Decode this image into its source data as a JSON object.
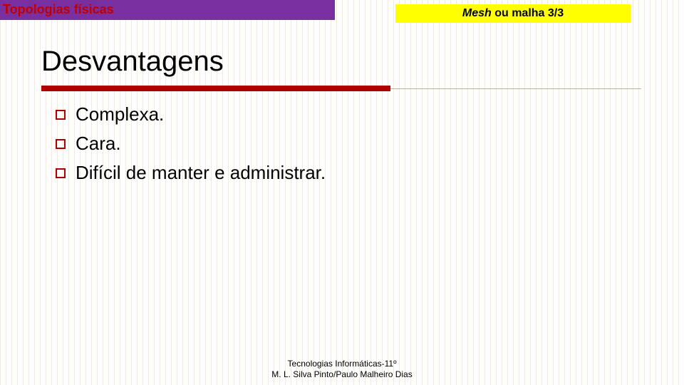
{
  "topic": "Topologias físicas",
  "subtitle_italic": "Mesh",
  "subtitle_rest": " ou malha 3/3",
  "heading": "Desvantagens",
  "bullets": [
    "Complexa.",
    "Cara.",
    "Difícil de manter e administrar."
  ],
  "footer_line1": "Tecnologias Informáticas-11º",
  "footer_line2": "M. L. Silva Pinto/Paulo Malheiro Dias",
  "colors": {
    "topic_bg": "#7a2fa0",
    "topic_text": "#c00000",
    "subtitle_bg": "#ffff00",
    "rule_red": "#b00000",
    "bullet_border": "#b00000"
  }
}
